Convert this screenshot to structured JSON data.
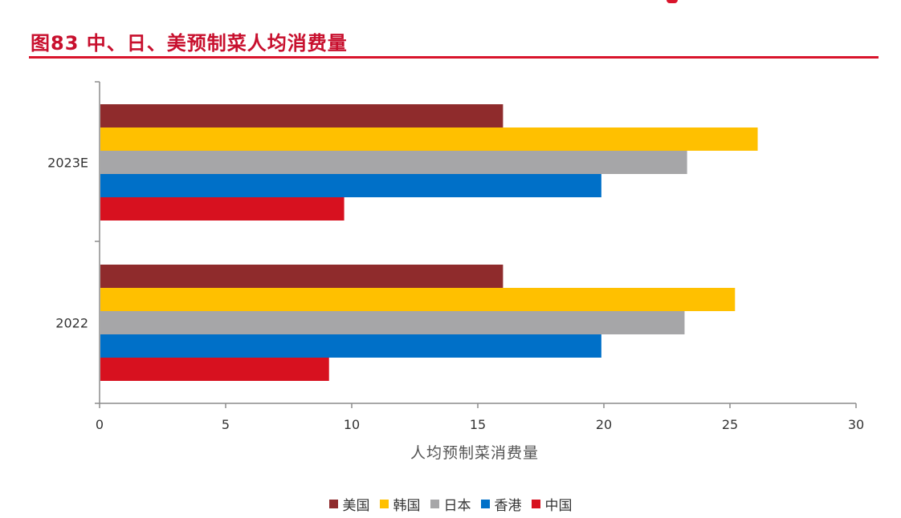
{
  "header": {
    "title": "图83  中、日、美预制菜人均消费量"
  },
  "chart_data": {
    "type": "bar",
    "orientation": "horizontal",
    "categories": [
      "2023E",
      "2022"
    ],
    "series": [
      {
        "name": "美国",
        "color": "#8f2b2c",
        "values": [
          16.0,
          16.0
        ]
      },
      {
        "name": "韩国",
        "color": "#ffc000",
        "values": [
          26.1,
          25.2
        ]
      },
      {
        "name": "日本",
        "color": "#a6a6a8",
        "values": [
          23.3,
          23.2
        ]
      },
      {
        "name": "香港",
        "color": "#0070c8",
        "values": [
          19.9,
          19.9
        ]
      },
      {
        "name": "中国",
        "color": "#d7111f",
        "values": [
          9.7,
          9.1
        ]
      }
    ],
    "xlabel": "人均预制菜消费量",
    "ylabel": "",
    "xlim": [
      0,
      30
    ],
    "xticks": [
      0,
      5,
      10,
      15,
      20,
      25,
      30
    ],
    "grid": false,
    "legend_position": "bottom"
  }
}
